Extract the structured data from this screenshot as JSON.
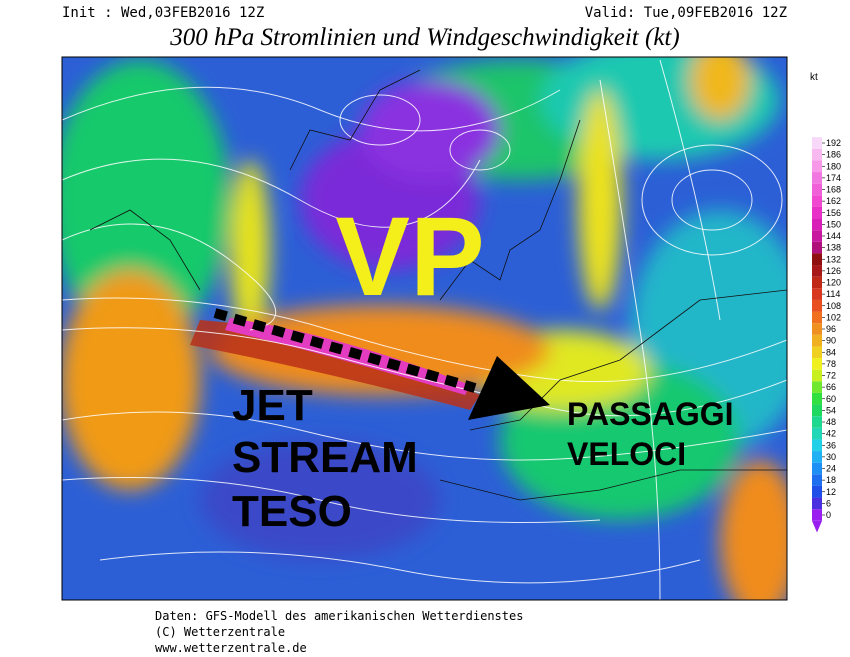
{
  "header": {
    "init": "Init : Wed,03FEB2016 12Z",
    "valid": "Valid: Tue,09FEB2016 12Z",
    "title": "300 hPa Stromlinien und Windgeschwindigkeit (kt)"
  },
  "annotations": {
    "vp": "VP",
    "jet": [
      "JET",
      "STREAM",
      "TESO"
    ],
    "passaggi": [
      "PASSAGGI",
      "VELOCI"
    ]
  },
  "colorbar": {
    "unit": "kt",
    "ticks": [
      0,
      6,
      12,
      18,
      24,
      30,
      36,
      42,
      48,
      54,
      60,
      66,
      72,
      78,
      84,
      90,
      96,
      102,
      108,
      114,
      120,
      126,
      132,
      138,
      144,
      150,
      156,
      162,
      168,
      174,
      180,
      186,
      192
    ]
  },
  "footer": [
    "Daten: GFS-Modell des amerikanischen Wetterdienstes",
    "(C) Wetterzentrale",
    "www.wetterzentrale.de"
  ]
}
